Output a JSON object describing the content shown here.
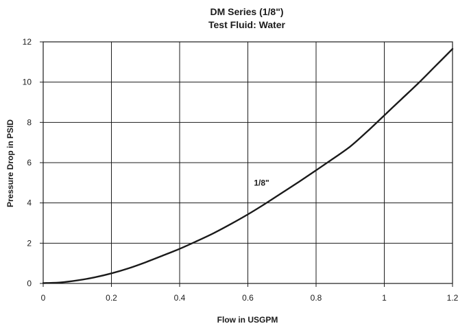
{
  "chart_data": {
    "type": "line",
    "title": "DM Series (1/8\")",
    "subtitle": "Test Fluid: Water",
    "xlabel": "Flow in USGPM",
    "ylabel": "Pressure Drop in PSID",
    "xlim": [
      0,
      1.2
    ],
    "ylim": [
      0,
      12
    ],
    "x_ticks": [
      "0",
      "0.2",
      "0.4",
      "0.6",
      "0.8",
      "1",
      "1.2"
    ],
    "y_ticks": [
      "0",
      "2",
      "4",
      "6",
      "8",
      "10",
      "12"
    ],
    "grid": true,
    "annotation": {
      "text": "1/8\"",
      "x": 0.65,
      "y": 5.0
    },
    "series": [
      {
        "name": "1/8\"",
        "x": [
          0,
          0.05,
          0.1,
          0.15,
          0.2,
          0.25,
          0.3,
          0.35,
          0.4,
          0.45,
          0.5,
          0.55,
          0.6,
          0.65,
          0.7,
          0.75,
          0.8,
          0.85,
          0.9,
          0.95,
          1.0,
          1.05,
          1.1,
          1.15,
          1.2
        ],
        "y": [
          0.02,
          0.05,
          0.15,
          0.3,
          0.5,
          0.75,
          1.05,
          1.38,
          1.72,
          2.1,
          2.5,
          2.95,
          3.43,
          3.95,
          4.5,
          5.05,
          5.62,
          6.2,
          6.8,
          7.55,
          8.35,
          9.15,
          9.95,
          10.8,
          11.65
        ]
      }
    ]
  }
}
